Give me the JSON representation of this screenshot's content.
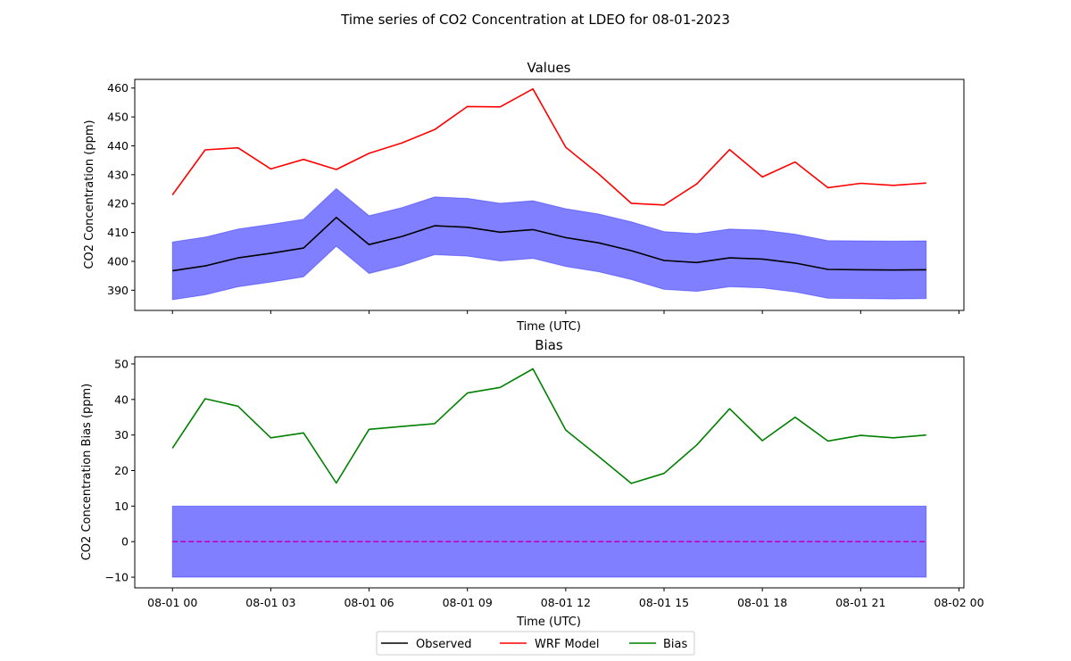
{
  "figure": {
    "suptitle": "Time series of CO2 Concentration at LDEO for 08-01-2023"
  },
  "chart_data": [
    {
      "type": "line",
      "title": "Values",
      "xlabel": "Time (UTC)",
      "ylabel": "CO2 Concentration (ppm)",
      "x_hours": [
        0,
        1,
        2,
        3,
        4,
        5,
        6,
        7,
        8,
        9,
        10,
        11,
        12,
        13,
        14,
        15,
        16,
        17,
        18,
        19,
        20,
        21,
        22,
        23
      ],
      "xlim_hours": [
        -1.15,
        24.15
      ],
      "ylim": [
        383,
        463
      ],
      "yticks": [
        390,
        400,
        410,
        420,
        430,
        440,
        450,
        460
      ],
      "xtick_labels_shown": false,
      "series": [
        {
          "name": "Observed",
          "color": "#000000",
          "values": [
            396.7,
            398.4,
            401.2,
            402.8,
            404.6,
            415.2,
            405.8,
            408.6,
            412.3,
            411.8,
            410.1,
            411.0,
            408.2,
            406.4,
            403.7,
            400.3,
            399.6,
            401.2,
            400.8,
            399.4,
            397.2,
            397.1,
            397.0,
            397.1
          ],
          "band": {
            "color": "#0000ff",
            "opacity": 0.5,
            "lower": [
              386.7,
              388.4,
              391.2,
              392.8,
              394.6,
              405.2,
              395.8,
              398.6,
              402.3,
              401.8,
              400.1,
              401.0,
              398.2,
              396.4,
              393.7,
              390.3,
              389.6,
              391.2,
              390.8,
              389.4,
              387.2,
              387.1,
              387.0,
              387.1
            ],
            "upper": [
              406.7,
              408.4,
              411.2,
              412.8,
              414.6,
              425.2,
              415.8,
              418.6,
              422.3,
              421.8,
              420.1,
              421.0,
              418.2,
              416.4,
              413.7,
              410.3,
              409.6,
              411.2,
              410.8,
              409.4,
              407.2,
              407.1,
              407.0,
              407.1
            ]
          }
        },
        {
          "name": "WRF Model",
          "color": "#ff0000",
          "values": [
            423.0,
            438.6,
            439.3,
            432.0,
            435.3,
            431.8,
            437.4,
            441.0,
            445.6,
            453.6,
            453.5,
            459.7,
            439.5,
            430.3,
            420.1,
            419.5,
            426.8,
            438.7,
            429.2,
            434.4,
            425.5,
            427.0,
            426.3,
            427.1
          ]
        }
      ]
    },
    {
      "type": "line",
      "title": "Bias",
      "xlabel": "Time (UTC)",
      "ylabel": "CO2 Concentration Bias (ppm)",
      "x_hours": [
        0,
        1,
        2,
        3,
        4,
        5,
        6,
        7,
        8,
        9,
        10,
        11,
        12,
        13,
        14,
        15,
        16,
        17,
        18,
        19,
        20,
        21,
        22,
        23
      ],
      "xlim_hours": [
        -1.15,
        24.15
      ],
      "ylim": [
        -13,
        52
      ],
      "yticks": [
        -10,
        0,
        10,
        20,
        30,
        40,
        50
      ],
      "ytick_labels": [
        "−10",
        "0",
        "10",
        "20",
        "30",
        "40",
        "50"
      ],
      "xticks_hours": [
        0,
        3,
        6,
        9,
        12,
        15,
        18,
        21,
        24
      ],
      "xtick_labels": [
        "08-01 00",
        "08-01 03",
        "08-01 06",
        "08-01 09",
        "08-01 12",
        "08-01 15",
        "08-01 18",
        "08-01 21",
        "08-02 00"
      ],
      "series": [
        {
          "name": "Bias",
          "color": "#008000",
          "values": [
            26.3,
            40.2,
            38.1,
            29.2,
            30.6,
            16.5,
            31.6,
            32.4,
            33.2,
            41.8,
            43.4,
            48.6,
            31.4,
            24.0,
            16.4,
            19.2,
            27.2,
            37.4,
            28.4,
            35.0,
            28.3,
            29.9,
            29.2,
            30.0
          ]
        }
      ],
      "reference_band": {
        "lower": -10,
        "upper": 10,
        "color": "#0000ff",
        "opacity": 0.5
      },
      "zero_line": {
        "value": 0,
        "color": "#bf00bf",
        "style": "dashed"
      }
    }
  ],
  "legend": {
    "placement": "bottom-center",
    "entries": [
      {
        "label": "Observed",
        "color": "#000000"
      },
      {
        "label": "WRF Model",
        "color": "#ff0000"
      },
      {
        "label": "Bias",
        "color": "#008000"
      }
    ]
  }
}
